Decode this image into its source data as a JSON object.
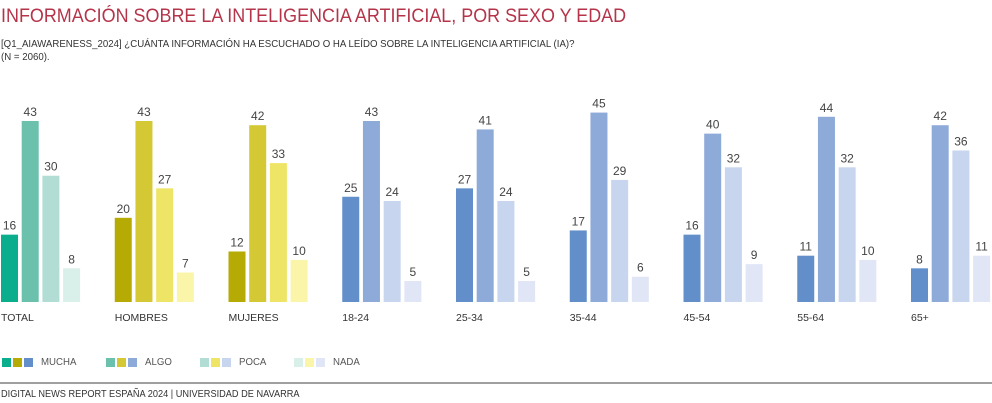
{
  "header": {
    "title": "INFORMACIÓN SOBRE LA INTELIGENCIA ARTIFICIAL, POR SEXO Y EDAD",
    "question": "[Q1_AIAWARENESS_2024] ¿CUÁNTA INFORMACIÓN HA ESCUCHADO O HA LEÍDO SOBRE LA INTELIGENCIA ARTIFICIAL (IA)?",
    "sample": "(N = 2060)."
  },
  "footer": {
    "source": "DIGITAL NEWS REPORT ESPAÑA 2024 | UNIVERSIDAD DE NAVARRA"
  },
  "palettes": {
    "total": [
      "#0aae8c",
      "#6bc1ac",
      "#b2ddd4",
      "#d9efea"
    ],
    "sexo": [
      "#b6aa05",
      "#d4c935",
      "#eee567",
      "#fbf5a9"
    ],
    "edad": [
      "#628fca",
      "#8eaad9",
      "#c8d5ee",
      "#e1e6f6"
    ]
  },
  "legend": [
    {
      "label": "MUCHA",
      "colors": [
        "#0aae8c",
        "#b6aa05",
        "#628fca"
      ]
    },
    {
      "label": "ALGO",
      "colors": [
        "#6bc1ac",
        "#d4c935",
        "#8eaad9"
      ]
    },
    {
      "label": "POCA",
      "colors": [
        "#b2ddd4",
        "#eee567",
        "#c8d5ee"
      ]
    },
    {
      "label": "NADA",
      "colors": [
        "#d9efea",
        "#fbf5a9",
        "#e1e6f6"
      ]
    }
  ],
  "chart_data": {
    "type": "bar",
    "title": "INFORMACIÓN SOBRE LA INTELIGENCIA ARTIFICIAL, POR SEXO Y EDAD",
    "xlabel": "",
    "ylabel": "",
    "unit": "%",
    "ylim": [
      0,
      45
    ],
    "grid": false,
    "legend_position": "bottom-left",
    "categories": [
      "TOTAL",
      "HOMBRES",
      "MUJERES",
      "18-24",
      "25-34",
      "35-44",
      "45-54",
      "55-64",
      "65+"
    ],
    "category_palette": [
      "total",
      "sexo",
      "sexo",
      "edad",
      "edad",
      "edad",
      "edad",
      "edad",
      "edad"
    ],
    "series": [
      {
        "name": "MUCHA",
        "values": [
          16,
          20,
          12,
          25,
          27,
          17,
          16,
          11,
          8
        ]
      },
      {
        "name": "ALGO",
        "values": [
          43,
          43,
          42,
          43,
          41,
          45,
          40,
          44,
          42
        ]
      },
      {
        "name": "POCA",
        "values": [
          30,
          27,
          33,
          24,
          24,
          29,
          32,
          32,
          36
        ]
      },
      {
        "name": "NADA",
        "values": [
          8,
          7,
          10,
          5,
          5,
          6,
          9,
          10,
          11
        ]
      }
    ]
  }
}
